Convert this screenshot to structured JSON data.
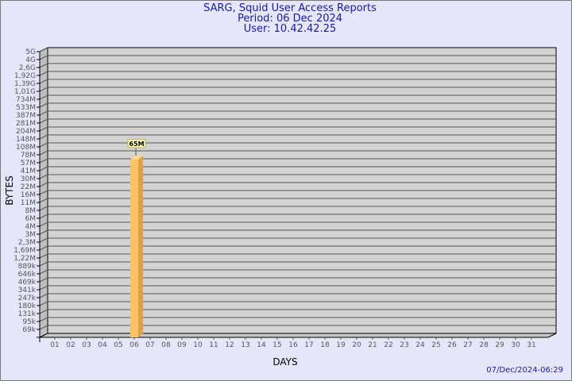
{
  "header": {
    "title": "SARG, Squid User Access Reports",
    "period": "Period: 06 Dec 2024",
    "user": "User: 10.42.42.25"
  },
  "footer": {
    "timestamp": "07/Dec/2024-06:29"
  },
  "chart_data": {
    "type": "bar",
    "title": "SARG, Squid User Access Reports",
    "xlabel": "DAYS",
    "ylabel": "BYTES",
    "yscale": "log",
    "grid": true,
    "yticks": [
      "5G",
      "4G",
      "2,6G",
      "1,92G",
      "1,39G",
      "1,01G",
      "734M",
      "533M",
      "387M",
      "281M",
      "204M",
      "148M",
      "108M",
      "78M",
      "57M",
      "41M",
      "30M",
      "22M",
      "16M",
      "11M",
      "8M",
      "6M",
      "4M",
      "3M",
      "2,3M",
      "1,69M",
      "1,22M",
      "889k",
      "646k",
      "469k",
      "341k",
      "247k",
      "180k",
      "131k",
      "95k",
      "69k"
    ],
    "categories": [
      "01",
      "02",
      "03",
      "04",
      "05",
      "06",
      "07",
      "08",
      "09",
      "10",
      "11",
      "12",
      "13",
      "14",
      "15",
      "16",
      "17",
      "18",
      "19",
      "20",
      "21",
      "22",
      "23",
      "24",
      "25",
      "26",
      "27",
      "28",
      "29",
      "30",
      "31"
    ],
    "bars": [
      {
        "day": "06",
        "value_label": "65M",
        "value": 65000000
      }
    ],
    "colors": {
      "bar_front": "#fcc266",
      "bar_side": "#e0a04c",
      "plot_bg": "#d3d3d3",
      "label_bg": "#ffffcc"
    }
  }
}
